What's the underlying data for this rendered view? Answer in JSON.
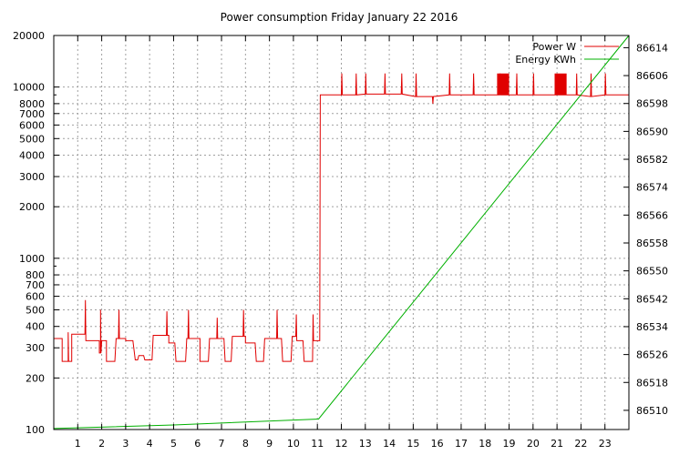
{
  "chart_data": {
    "type": "line",
    "title": "Power consumption Friday January 22 2016",
    "xlabel": "",
    "ylabel": "",
    "y2label": "",
    "xlim": [
      0,
      24
    ],
    "ylim": [
      100,
      20000
    ],
    "y2lim": [
      86504.5,
      86617.5
    ],
    "y_scale": "log",
    "grid": true,
    "legend_position": "top-right",
    "x_ticks": [
      1,
      2,
      3,
      4,
      5,
      6,
      7,
      8,
      9,
      10,
      11,
      12,
      13,
      14,
      15,
      16,
      17,
      18,
      19,
      20,
      21,
      22,
      23
    ],
    "y_ticks": [
      100,
      200,
      300,
      400,
      500,
      600,
      700,
      800,
      1000,
      2000,
      3000,
      4000,
      5000,
      6000,
      7000,
      8000,
      10000,
      20000
    ],
    "y2_ticks": [
      86510,
      86518,
      86526,
      86534,
      86542,
      86550,
      86558,
      86566,
      86574,
      86582,
      86590,
      86598,
      86606,
      86614
    ],
    "series": [
      {
        "name": "Power W",
        "axis": "left",
        "color": "#e00000",
        "points": [
          [
            0.0,
            340
          ],
          [
            0.35,
            340
          ],
          [
            0.35,
            250
          ],
          [
            0.6,
            250
          ],
          [
            0.6,
            370
          ],
          [
            0.62,
            250
          ],
          [
            0.75,
            250
          ],
          [
            0.75,
            360
          ],
          [
            1.3,
            360
          ],
          [
            1.32,
            570
          ],
          [
            1.34,
            330
          ],
          [
            1.9,
            330
          ],
          [
            1.9,
            280
          ],
          [
            1.95,
            280
          ],
          [
            1.95,
            500
          ],
          [
            1.97,
            280
          ],
          [
            2.0,
            330
          ],
          [
            2.2,
            330
          ],
          [
            2.2,
            250
          ],
          [
            2.55,
            250
          ],
          [
            2.6,
            340
          ],
          [
            2.7,
            340
          ],
          [
            2.72,
            500
          ],
          [
            2.74,
            340
          ],
          [
            3.0,
            340
          ],
          [
            3.0,
            330
          ],
          [
            3.3,
            330
          ],
          [
            3.4,
            255
          ],
          [
            3.5,
            255
          ],
          [
            3.55,
            270
          ],
          [
            3.75,
            270
          ],
          [
            3.8,
            255
          ],
          [
            4.1,
            255
          ],
          [
            4.15,
            355
          ],
          [
            4.7,
            355
          ],
          [
            4.72,
            490
          ],
          [
            4.74,
            355
          ],
          [
            4.8,
            355
          ],
          [
            4.8,
            320
          ],
          [
            5.05,
            320
          ],
          [
            5.1,
            250
          ],
          [
            5.5,
            250
          ],
          [
            5.55,
            340
          ],
          [
            5.6,
            340
          ],
          [
            5.62,
            500
          ],
          [
            5.64,
            340
          ],
          [
            6.1,
            340
          ],
          [
            6.1,
            250
          ],
          [
            6.45,
            250
          ],
          [
            6.5,
            340
          ],
          [
            6.8,
            340
          ],
          [
            6.82,
            450
          ],
          [
            6.84,
            340
          ],
          [
            7.1,
            340
          ],
          [
            7.15,
            250
          ],
          [
            7.4,
            250
          ],
          [
            7.45,
            350
          ],
          [
            7.9,
            350
          ],
          [
            7.92,
            500
          ],
          [
            7.94,
            350
          ],
          [
            8.0,
            350
          ],
          [
            8.0,
            320
          ],
          [
            8.4,
            320
          ],
          [
            8.45,
            250
          ],
          [
            8.75,
            250
          ],
          [
            8.8,
            340
          ],
          [
            9.3,
            340
          ],
          [
            9.32,
            500
          ],
          [
            9.34,
            340
          ],
          [
            9.5,
            340
          ],
          [
            9.55,
            250
          ],
          [
            9.9,
            250
          ],
          [
            9.95,
            350
          ],
          [
            10.1,
            350
          ],
          [
            10.12,
            470
          ],
          [
            10.14,
            330
          ],
          [
            10.4,
            330
          ],
          [
            10.45,
            250
          ],
          [
            10.8,
            250
          ],
          [
            10.82,
            470
          ],
          [
            10.84,
            330
          ],
          [
            11.1,
            330
          ],
          [
            11.12,
            9000
          ],
          [
            12.0,
            9000
          ],
          [
            12.02,
            12000
          ],
          [
            12.04,
            9000
          ],
          [
            12.6,
            9000
          ],
          [
            12.62,
            12000
          ],
          [
            12.64,
            9000
          ],
          [
            13.0,
            9100
          ],
          [
            13.02,
            12000
          ],
          [
            13.04,
            9100
          ],
          [
            13.8,
            9100
          ],
          [
            13.82,
            12000
          ],
          [
            13.84,
            9100
          ],
          [
            14.5,
            9100
          ],
          [
            14.52,
            12000
          ],
          [
            14.54,
            9100
          ],
          [
            15.1,
            8800
          ],
          [
            15.12,
            12000
          ],
          [
            15.14,
            8800
          ],
          [
            15.8,
            8800
          ],
          [
            15.82,
            8000
          ],
          [
            15.84,
            8800
          ],
          [
            16.5,
            9000
          ],
          [
            16.52,
            12000
          ],
          [
            16.54,
            9000
          ],
          [
            17.5,
            9000
          ],
          [
            17.52,
            12000
          ],
          [
            17.54,
            9000
          ],
          [
            18.6,
            9000
          ],
          [
            18.62,
            12000
          ],
          [
            18.64,
            9000
          ],
          [
            19.3,
            9000
          ],
          [
            19.32,
            12000
          ],
          [
            19.34,
            9000
          ],
          [
            20.0,
            9000
          ],
          [
            20.02,
            12000
          ],
          [
            20.04,
            9000
          ],
          [
            21.8,
            9000
          ],
          [
            21.82,
            12000
          ],
          [
            21.84,
            9000
          ],
          [
            22.4,
            8800
          ],
          [
            22.42,
            12000
          ],
          [
            22.44,
            8800
          ],
          [
            23.0,
            9000
          ],
          [
            23.02,
            12000
          ],
          [
            23.04,
            9000
          ],
          [
            24.0,
            9000
          ]
        ],
        "dense_bands": [
          [
            18.5,
            19.0
          ],
          [
            20.9,
            21.4
          ]
        ],
        "band_range": [
          9000,
          12000
        ]
      },
      {
        "name": "Energy KWh",
        "axis": "right",
        "color": "#00b000",
        "points": [
          [
            0.0,
            86504.8
          ],
          [
            5.0,
            86505.8
          ],
          [
            11.05,
            86507.5
          ],
          [
            24.0,
            86617.5
          ]
        ]
      }
    ]
  }
}
